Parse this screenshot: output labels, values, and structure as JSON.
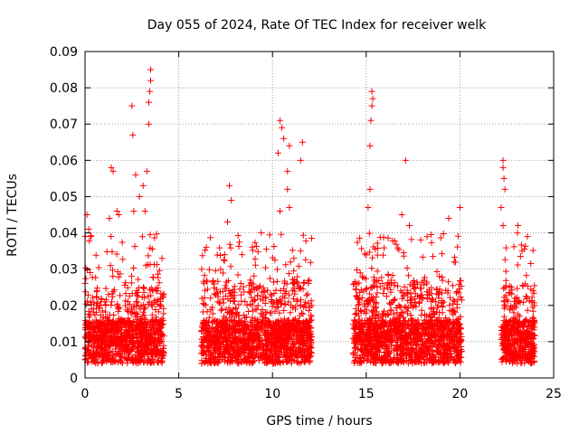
{
  "chart_data": {
    "type": "scatter",
    "title": "Day 055 of 2024, Rate Of TEC Index for receiver welk",
    "xlabel": "GPS time / hours",
    "ylabel": "ROTI / TECUs",
    "xlim": [
      0,
      25
    ],
    "ylim": [
      0,
      0.09
    ],
    "xticks": [
      "0",
      "5",
      "10",
      "15",
      "20",
      "25"
    ],
    "yticks": [
      "0",
      "0.01",
      "0.02",
      "0.03",
      "0.04",
      "0.05",
      "0.06",
      "0.07",
      "0.08",
      "0.09"
    ],
    "grid": true,
    "marker": "+",
    "color": "#ff0000",
    "data_segments": [
      {
        "x_start": 0.0,
        "x_end": 4.2,
        "typical_max": 0.025
      },
      {
        "x_start": 6.2,
        "x_end": 12.1,
        "typical_max": 0.027
      },
      {
        "x_start": 14.3,
        "x_end": 20.1,
        "typical_max": 0.027
      },
      {
        "x_start": 22.2,
        "x_end": 24.0,
        "typical_max": 0.026
      }
    ],
    "outliers": [
      {
        "x": 0.1,
        "y": 0.045
      },
      {
        "x": 0.2,
        "y": 0.041
      },
      {
        "x": 0.3,
        "y": 0.039
      },
      {
        "x": 1.4,
        "y": 0.058
      },
      {
        "x": 1.5,
        "y": 0.057
      },
      {
        "x": 1.3,
        "y": 0.044
      },
      {
        "x": 1.7,
        "y": 0.046
      },
      {
        "x": 1.8,
        "y": 0.045
      },
      {
        "x": 2.5,
        "y": 0.075
      },
      {
        "x": 2.55,
        "y": 0.067
      },
      {
        "x": 2.7,
        "y": 0.056
      },
      {
        "x": 2.6,
        "y": 0.046
      },
      {
        "x": 2.9,
        "y": 0.05
      },
      {
        "x": 3.1,
        "y": 0.053
      },
      {
        "x": 3.3,
        "y": 0.057
      },
      {
        "x": 3.4,
        "y": 0.07
      },
      {
        "x": 3.5,
        "y": 0.085
      },
      {
        "x": 3.5,
        "y": 0.082
      },
      {
        "x": 3.45,
        "y": 0.079
      },
      {
        "x": 3.4,
        "y": 0.076
      },
      {
        "x": 3.2,
        "y": 0.046
      },
      {
        "x": 7.7,
        "y": 0.053
      },
      {
        "x": 7.8,
        "y": 0.049
      },
      {
        "x": 7.6,
        "y": 0.043
      },
      {
        "x": 9.4,
        "y": 0.04
      },
      {
        "x": 10.4,
        "y": 0.071
      },
      {
        "x": 10.5,
        "y": 0.069
      },
      {
        "x": 10.6,
        "y": 0.066
      },
      {
        "x": 10.3,
        "y": 0.062
      },
      {
        "x": 10.9,
        "y": 0.064
      },
      {
        "x": 10.8,
        "y": 0.057
      },
      {
        "x": 11.6,
        "y": 0.065
      },
      {
        "x": 11.5,
        "y": 0.06
      },
      {
        "x": 10.4,
        "y": 0.046
      },
      {
        "x": 10.9,
        "y": 0.047
      },
      {
        "x": 10.8,
        "y": 0.052
      },
      {
        "x": 15.3,
        "y": 0.079
      },
      {
        "x": 15.35,
        "y": 0.077
      },
      {
        "x": 15.3,
        "y": 0.075
      },
      {
        "x": 15.25,
        "y": 0.071
      },
      {
        "x": 15.2,
        "y": 0.064
      },
      {
        "x": 15.2,
        "y": 0.052
      },
      {
        "x": 15.1,
        "y": 0.047
      },
      {
        "x": 17.1,
        "y": 0.06
      },
      {
        "x": 16.9,
        "y": 0.045
      },
      {
        "x": 17.3,
        "y": 0.042
      },
      {
        "x": 19.4,
        "y": 0.044
      },
      {
        "x": 20.0,
        "y": 0.047
      },
      {
        "x": 22.3,
        "y": 0.06
      },
      {
        "x": 22.3,
        "y": 0.058
      },
      {
        "x": 22.35,
        "y": 0.055
      },
      {
        "x": 22.4,
        "y": 0.052
      },
      {
        "x": 22.2,
        "y": 0.047
      },
      {
        "x": 22.3,
        "y": 0.042
      },
      {
        "x": 23.6,
        "y": 0.039
      },
      {
        "x": 23.1,
        "y": 0.042
      }
    ]
  }
}
